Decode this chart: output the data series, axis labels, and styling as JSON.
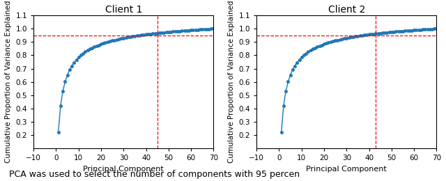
{
  "client1": {
    "title": "Client 1",
    "n_components": 70,
    "vline_x": 45,
    "hline_y": 0.95,
    "xlim": [
      -10,
      70
    ],
    "ylim": [
      0.1,
      1.1
    ],
    "xticks": [
      -10,
      0,
      10,
      20,
      30,
      40,
      50,
      60,
      70
    ],
    "yticks": [
      0.2,
      0.3,
      0.4,
      0.5,
      0.6,
      0.7,
      0.8,
      0.9,
      1.0,
      1.1
    ],
    "power": 0.38
  },
  "client2": {
    "title": "Client 2",
    "n_components": 70,
    "vline_x": 43,
    "hline_y": 0.95,
    "xlim": [
      -10,
      70
    ],
    "ylim": [
      0.1,
      1.1
    ],
    "xticks": [
      -10,
      0,
      10,
      20,
      30,
      40,
      50,
      60,
      70
    ],
    "yticks": [
      0.2,
      0.3,
      0.4,
      0.5,
      0.6,
      0.7,
      0.8,
      0.9,
      1.0,
      1.1
    ],
    "power": 0.4
  },
  "ylabel": "Cumulative Proportion of Variance Explained",
  "xlabel": "Principal Component",
  "line_color": "#1f77b4",
  "red_color": "#ff0000",
  "marker": "o",
  "markersize": 3,
  "linewidth": 1.0,
  "caption": "PCA was used to select the number of components with 95 percen"
}
